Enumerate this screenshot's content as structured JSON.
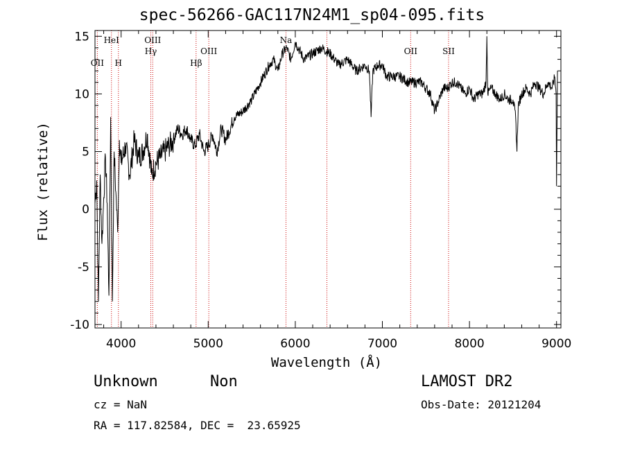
{
  "chart_data": {
    "type": "line",
    "title": "spec-56266-GAC117N24M1_sp04-095.fits",
    "xlabel": "Wavelength (Å)",
    "ylabel": "Flux (relative)",
    "xlim": [
      3700,
      9050
    ],
    "ylim": [
      -10.3,
      15.5
    ],
    "xticks": [
      4000,
      5000,
      6000,
      7000,
      8000,
      9000
    ],
    "yticks": [
      -10,
      -5,
      0,
      5,
      10,
      15
    ],
    "grid": false,
    "legend": "none",
    "line_color": "#000000",
    "marker_color": "#cc0000",
    "spectral_lines": [
      {
        "label": "OII",
        "x": 3727,
        "row": 3
      },
      {
        "label": "HeI",
        "x": 3889,
        "row": 1
      },
      {
        "label": "H",
        "x": 3969,
        "row": 3
      },
      {
        "label": "OIII",
        "x": 4363,
        "row": 1
      },
      {
        "label": "Hγ",
        "x": 4341,
        "row": 2
      },
      {
        "label": "Hβ",
        "x": 4861,
        "row": 3
      },
      {
        "label": "OIII",
        "x": 5007,
        "row": 2
      },
      {
        "label": "Na",
        "x": 5893,
        "row": 1
      },
      {
        "label": "",
        "x": 6363,
        "row": 0
      },
      {
        "label": "OII",
        "x": 7325,
        "row": 2
      },
      {
        "label": "SII",
        "x": 7760,
        "row": 2
      }
    ],
    "series": [
      {
        "x": [
          3700,
          3720,
          3740,
          3760,
          3780,
          3800,
          3820,
          3840,
          3860,
          3880,
          3900,
          3920,
          3940,
          3960,
          3980,
          4000,
          4050,
          4100,
          4150,
          4200,
          4250,
          4300,
          4350,
          4400,
          4450,
          4500,
          4550,
          4600,
          4650,
          4700,
          4750,
          4800,
          4850,
          4900,
          4950,
          5000,
          5050,
          5100,
          5150,
          5200,
          5300,
          5400,
          5500,
          5600,
          5700,
          5750,
          5800,
          5850,
          5900,
          5950,
          6000,
          6100,
          6200,
          6300,
          6400,
          6500,
          6600,
          6700,
          6800,
          6850,
          6870,
          6890,
          6950,
          7000,
          7050,
          7100,
          7200,
          7300,
          7400,
          7450,
          7500,
          7550,
          7600,
          7650,
          7700,
          7750,
          7800,
          7850,
          7900,
          7950,
          8000,
          8050,
          8100,
          8150,
          8190,
          8200,
          8210,
          8250,
          8300,
          8350,
          8400,
          8450,
          8500,
          8530,
          8545,
          8560,
          8600,
          8650,
          8700,
          8750,
          8800,
          8850,
          8900,
          8950,
          8980,
          8995,
          9000,
          9010
        ],
        "y": [
          0.5,
          2.5,
          -8,
          3,
          -3,
          1,
          4.5,
          0.5,
          -7.5,
          8,
          -8,
          5,
          1.5,
          -2,
          6,
          4,
          5.5,
          3,
          6,
          4.5,
          5,
          6.5,
          3,
          4,
          4.5,
          5,
          5.5,
          6,
          7,
          6.5,
          7,
          6,
          5.5,
          6.5,
          5,
          5.5,
          6.5,
          5,
          7,
          6,
          8,
          8.5,
          9.5,
          11,
          12.5,
          13,
          12,
          13.5,
          14,
          13,
          14.5,
          13,
          13.5,
          14,
          13.5,
          12.5,
          13,
          12,
          12.5,
          12,
          8,
          12,
          12.5,
          12.5,
          11.5,
          11.5,
          11.5,
          11,
          11,
          11,
          10.5,
          10,
          8.5,
          9.5,
          10.5,
          10.5,
          11,
          11,
          10.5,
          10,
          10.5,
          9.5,
          10,
          10,
          11,
          15,
          10,
          10.5,
          10,
          9.5,
          10,
          9.5,
          9.5,
          8,
          5,
          9,
          10,
          10.5,
          10,
          11,
          10.5,
          10,
          11,
          10.5,
          11.5,
          10,
          2,
          12
        ]
      }
    ]
  },
  "info": {
    "object_class": "Unknown",
    "object_subclass": "Non",
    "survey": "LAMOST DR2",
    "redshift": "cz = NaN",
    "obs_date": "Obs-Date: 20121204",
    "coords": "RA = 117.82584, DEC =  23.65925"
  }
}
